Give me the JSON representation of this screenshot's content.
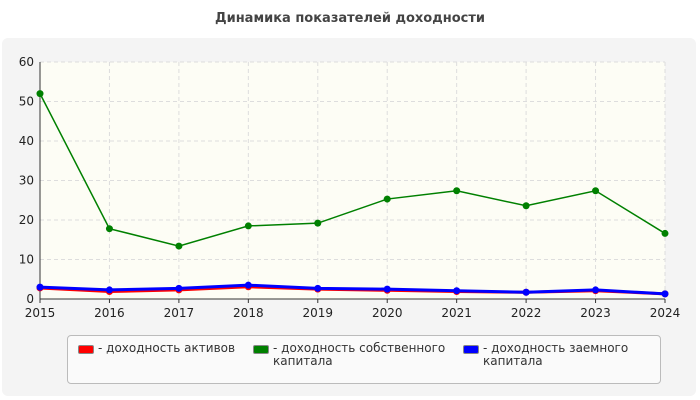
{
  "chart_data": {
    "type": "line",
    "title": "Динамика показателей доходности",
    "x": [
      2015,
      2016,
      2017,
      2018,
      2019,
      2020,
      2021,
      2022,
      2023,
      2024
    ],
    "ylim": [
      0,
      60
    ],
    "yticks": [
      0,
      10,
      20,
      30,
      40,
      50,
      60
    ],
    "grid": true,
    "legend_position": "bottom",
    "series": [
      {
        "name": "- доходность активов",
        "color": "#ff0000",
        "values": [
          2.8,
          1.9,
          2.3,
          3.1,
          2.5,
          2.2,
          1.9,
          1.7,
          2.1,
          1.3
        ]
      },
      {
        "name": "- доходность собственного капитала",
        "color": "#008000",
        "values": [
          52,
          17.8,
          13.4,
          18.5,
          19.2,
          25.3,
          27.4,
          23.6,
          27.4,
          16.6
        ]
      },
      {
        "name": "- доходность заемного капитала",
        "color": "#0000ff",
        "values": [
          3.0,
          2.3,
          2.7,
          3.5,
          2.7,
          2.5,
          2.1,
          1.7,
          2.3,
          1.3
        ]
      }
    ]
  }
}
